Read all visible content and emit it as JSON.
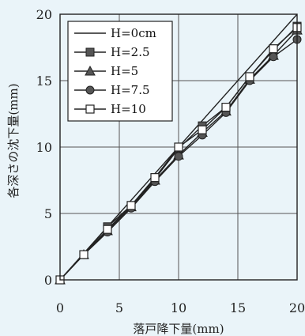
{
  "chart_data": {
    "type": "line",
    "title": "",
    "xlabel": "落戸降下量(mm)",
    "ylabel": "各深さの沈下量(mm)",
    "xlim": [
      0,
      20
    ],
    "ylim": [
      0,
      20
    ],
    "xticks": [
      0,
      5,
      10,
      15,
      20
    ],
    "yticks": [
      0,
      5,
      10,
      15,
      20
    ],
    "grid": true,
    "legend_position": "top-left",
    "series": [
      {
        "name": "H=0cm",
        "marker": "none",
        "x": [
          0,
          20
        ],
        "y": [
          0,
          20
        ]
      },
      {
        "name": "H=2.5",
        "marker": "square-filled",
        "x": [
          0,
          2,
          4,
          6,
          8,
          10,
          12,
          14,
          16,
          18,
          20
        ],
        "y": [
          0,
          1.9,
          4.0,
          5.6,
          7.6,
          9.9,
          11.6,
          13.0,
          15.3,
          17.3,
          19.1
        ]
      },
      {
        "name": "H=5",
        "marker": "triangle-filled",
        "x": [
          0,
          2,
          4,
          6,
          8,
          10,
          12,
          14,
          16,
          18,
          20
        ],
        "y": [
          0,
          1.9,
          3.7,
          5.5,
          7.5,
          9.4,
          11.1,
          12.7,
          15.1,
          16.9,
          18.8
        ]
      },
      {
        "name": "H=7.5",
        "marker": "circle-filled",
        "x": [
          0,
          2,
          4,
          6,
          8,
          10,
          12,
          14,
          16,
          18,
          20
        ],
        "y": [
          0,
          1.9,
          3.6,
          5.4,
          7.4,
          9.3,
          10.9,
          12.6,
          15.0,
          16.8,
          18.1
        ]
      },
      {
        "name": "H=10",
        "marker": "square-open",
        "x": [
          0,
          2,
          4,
          6,
          8,
          10,
          12,
          14,
          16,
          18,
          20
        ],
        "y": [
          0,
          1.9,
          3.8,
          5.6,
          7.7,
          10.0,
          11.3,
          13.0,
          15.3,
          17.4,
          19.0
        ]
      }
    ]
  }
}
